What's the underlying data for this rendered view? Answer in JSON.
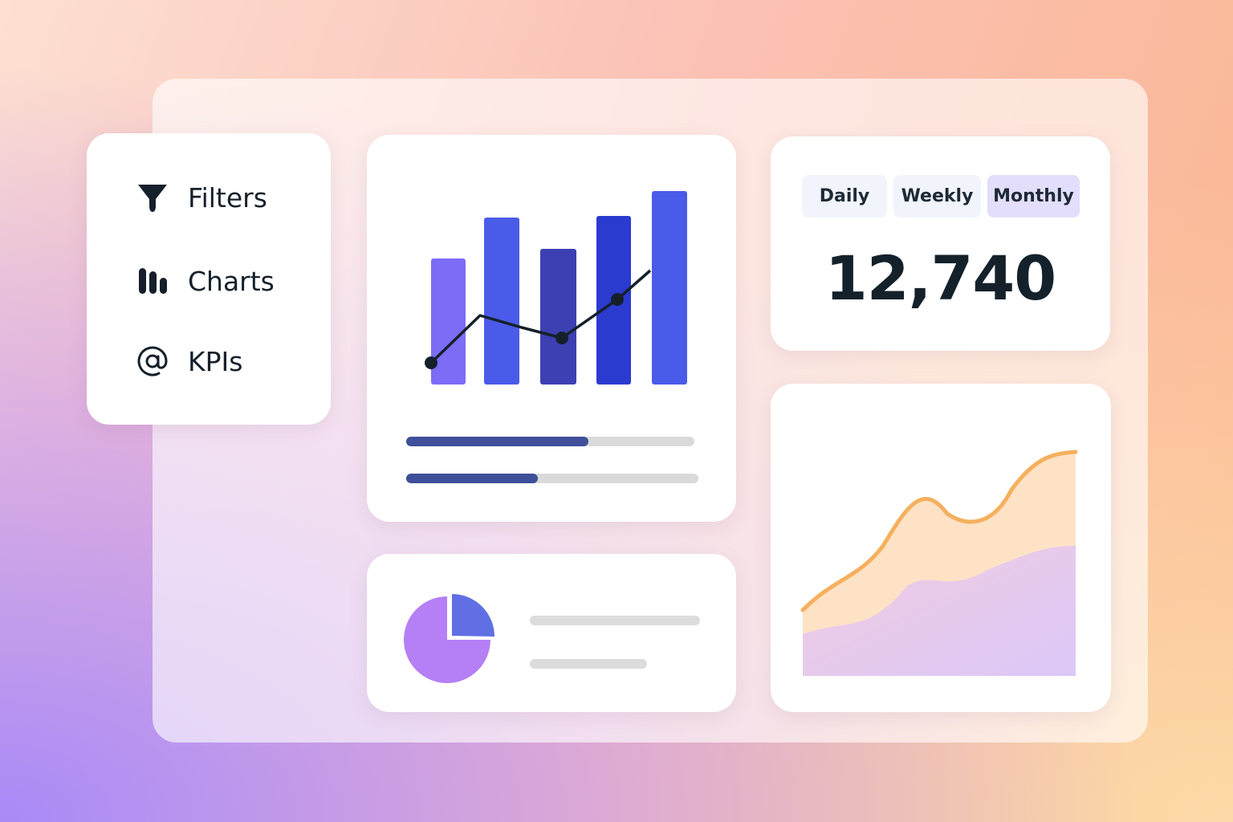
{
  "sidebar": {
    "items": [
      {
        "label": "Filters"
      },
      {
        "label": "Charts"
      },
      {
        "label": "KPIs"
      }
    ]
  },
  "kpi": {
    "periods": [
      "Daily",
      "Weekly",
      "Monthly"
    ],
    "value": "12,740"
  }
}
